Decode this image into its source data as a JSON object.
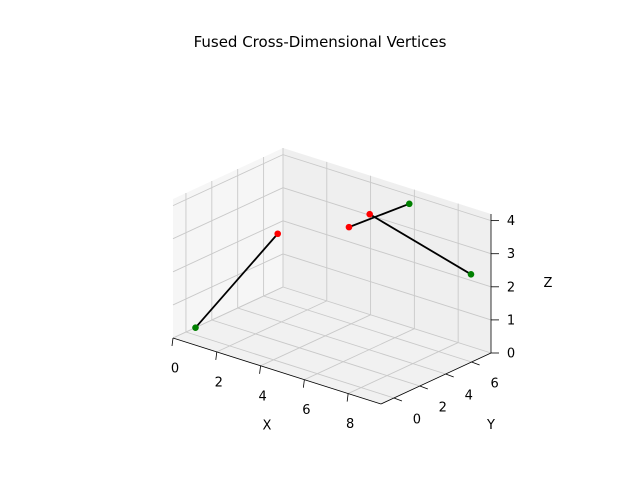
{
  "chart_data": {
    "type": "scatter3d",
    "title": "Fused Cross-Dimensional Vertices",
    "xlabel": "X",
    "ylabel": "Y",
    "zlabel": "Z",
    "xlim": [
      0,
      9.5
    ],
    "ylim": [
      -1,
      7.5
    ],
    "zlim": [
      0,
      4.2
    ],
    "xticks": [
      "0",
      "2",
      "4",
      "6",
      "8"
    ],
    "yticks": [
      "0",
      "2",
      "4",
      "6"
    ],
    "zticks": [
      "0",
      "1",
      "2",
      "3",
      "4"
    ],
    "grid": true,
    "segments": [
      {
        "start": {
          "x": 1.0,
          "y": 5.4,
          "z": 2.2,
          "color": "#ff0000"
        },
        "end": {
          "x": 0.2,
          "y": 0.4,
          "z": 0.1,
          "color": "#008000"
        }
      },
      {
        "start": {
          "x": 3.9,
          "y": 6.0,
          "z": 2.9,
          "color": "#ff0000"
        },
        "end": {
          "x": 6.3,
          "y": 6.6,
          "z": 4.0,
          "color": "#008000"
        }
      },
      {
        "start": {
          "x": 3.9,
          "y": 7.6,
          "z": 3.0,
          "color": "#ff0000"
        },
        "end": {
          "x": 9.0,
          "y": 6.8,
          "z": 2.4,
          "color": "#008000"
        }
      }
    ]
  }
}
